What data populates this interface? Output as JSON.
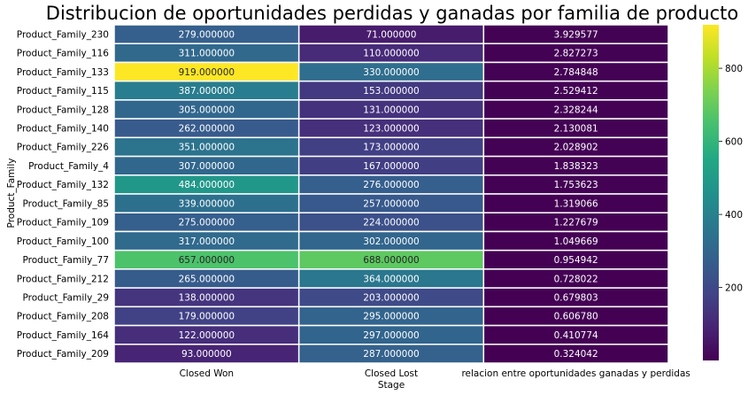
{
  "chart_data": {
    "type": "heatmap",
    "title": "Distribucion de oportunidades perdidas y ganadas por familia de producto",
    "xlabel": "Stage",
    "ylabel": "Product_Family",
    "columns": [
      "Closed Won",
      "Closed Lost",
      "relacion entre oportunidades ganadas y perdidas"
    ],
    "rows": [
      "Product_Family_230",
      "Product_Family_116",
      "Product_Family_133",
      "Product_Family_115",
      "Product_Family_128",
      "Product_Family_140",
      "Product_Family_226",
      "Product_Family_4",
      "Product_Family_132",
      "Product_Family_85",
      "Product_Family_109",
      "Product_Family_100",
      "Product_Family_77",
      "Product_Family_212",
      "Product_Family_29",
      "Product_Family_208",
      "Product_Family_164",
      "Product_Family_209"
    ],
    "values": [
      [
        279,
        71,
        3.929577
      ],
      [
        311,
        110,
        2.827273
      ],
      [
        919,
        330,
        2.784848
      ],
      [
        387,
        153,
        2.529412
      ],
      [
        305,
        131,
        2.328244
      ],
      [
        262,
        123,
        2.130081
      ],
      [
        351,
        173,
        2.028902
      ],
      [
        307,
        167,
        1.838323
      ],
      [
        484,
        276,
        1.753623
      ],
      [
        339,
        257,
        1.319066
      ],
      [
        275,
        224,
        1.227679
      ],
      [
        317,
        302,
        1.049669
      ],
      [
        657,
        688,
        0.954942
      ],
      [
        265,
        364,
        0.728022
      ],
      [
        138,
        203,
        0.679803
      ],
      [
        179,
        295,
        0.60678
      ],
      [
        122,
        297,
        0.410774
      ],
      [
        93,
        287,
        0.324042
      ]
    ],
    "annotation_format": "6 decimals",
    "colormap": "viridis",
    "color_range": [
      0.324042,
      919
    ],
    "colorbar_ticks": [
      200,
      400,
      600,
      800
    ],
    "cell_border_color": "#ffffff"
  }
}
